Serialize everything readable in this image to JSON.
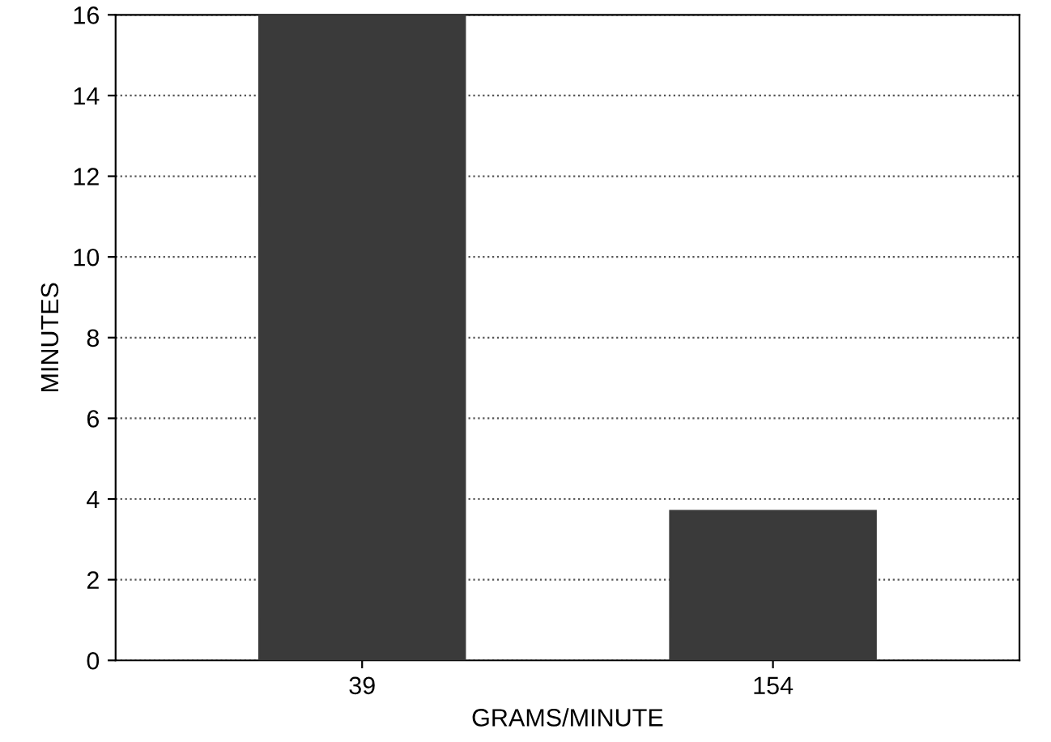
{
  "chart_data": {
    "type": "bar",
    "xlabel": "GRAMS/MINUTE",
    "ylabel": "MINUTES",
    "categories": [
      "39",
      "154"
    ],
    "values": [
      16,
      3.7
    ],
    "color": "#3a3a3a",
    "ylim": [
      0,
      16
    ],
    "yticks": [
      0,
      2,
      4,
      6,
      8,
      10,
      12,
      14,
      16
    ],
    "grid": "y"
  }
}
